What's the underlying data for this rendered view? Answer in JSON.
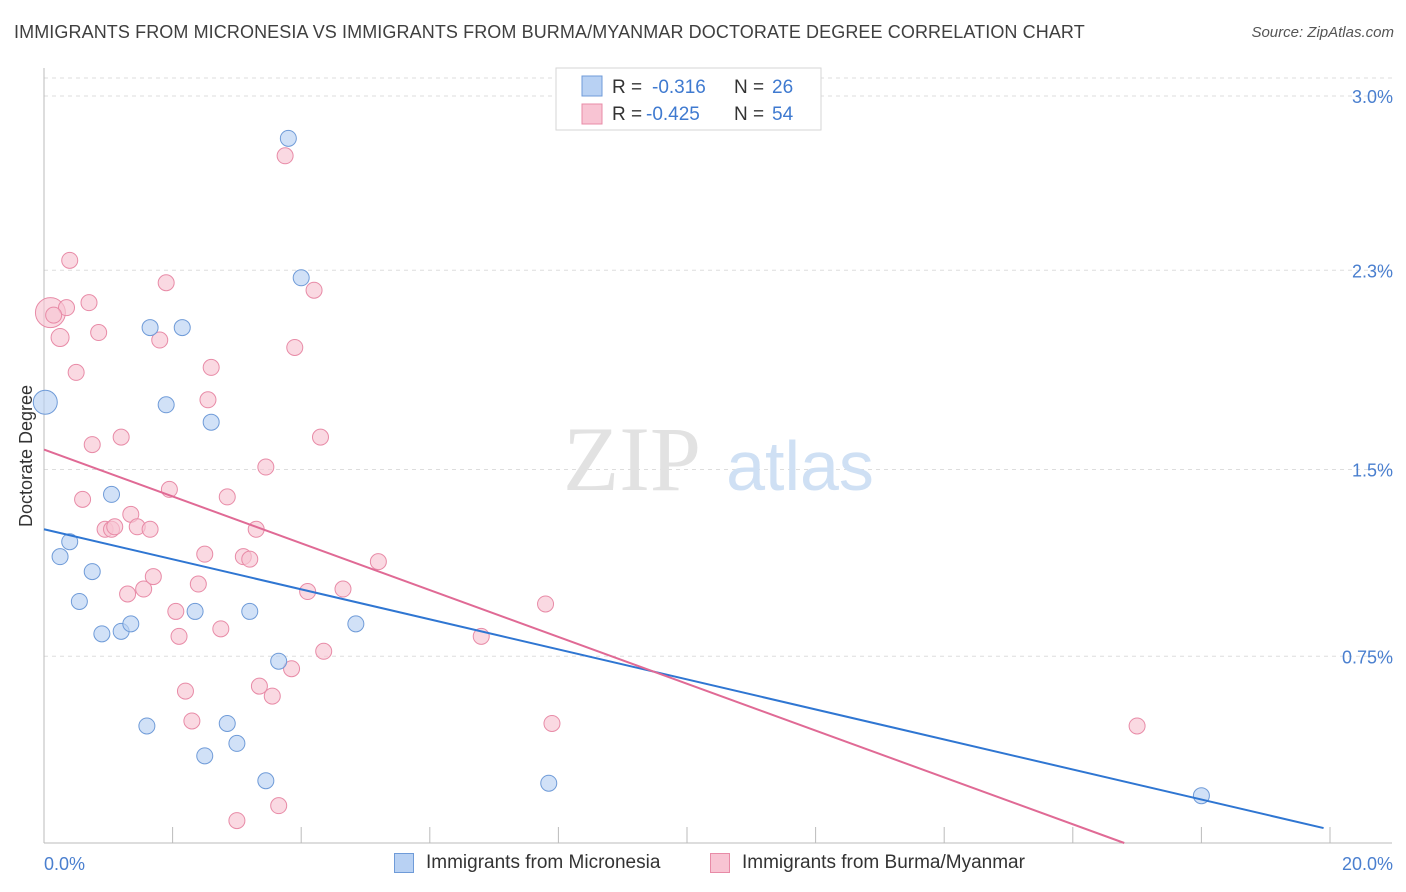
{
  "header": {
    "title": "IMMIGRANTS FROM MICRONESIA VS IMMIGRANTS FROM BURMA/MYANMAR DOCTORATE DEGREE CORRELATION CHART",
    "source": "Source: ZipAtlas.com"
  },
  "watermark": {
    "part1": "ZIP",
    "part2": "atlas"
  },
  "colors": {
    "blue_fill": "#b8d1f3",
    "blue_stroke": "#6f9bd8",
    "blue_line": "#2f76d2",
    "pink_fill": "#f8c4d3",
    "pink_stroke": "#e88ba7",
    "pink_line": "#e06a95",
    "axis_text": "#4a7fcf",
    "grid": "#dddddd"
  },
  "legend": {
    "rows": [
      {
        "r_label": "R =",
        "r_value": "-0.316",
        "n_label": "N =",
        "n_value": "26"
      },
      {
        "r_label": "R =",
        "r_value": "-0.425",
        "n_label": "N =",
        "n_value": "54"
      }
    ]
  },
  "chart_data": {
    "type": "scatter",
    "title": "IMMIGRANTS FROM MICRONESIA VS IMMIGRANTS FROM BURMA/MYANMAR DOCTORATE DEGREE CORRELATION CHART",
    "xlabel": "",
    "ylabel": "Doctorate Degree",
    "xlim": [
      0,
      20
    ],
    "ylim": [
      0,
      3.0
    ],
    "x_tick_labels": [
      "0.0%",
      "20.0%"
    ],
    "y_ticks": [
      0.75,
      1.5,
      2.3,
      3.0
    ],
    "y_tick_labels": [
      "0.75%",
      "1.5%",
      "2.3%",
      "3.0%"
    ],
    "grid": true,
    "legend_position": "top-center",
    "series": [
      {
        "name": "Immigrants from Micronesia",
        "color": "#6f9bd8",
        "r": -0.316,
        "n": 26,
        "trend": {
          "x": [
            0,
            19.9
          ],
          "y": [
            1.26,
            0.06
          ]
        },
        "points": [
          [
            0.02,
            1.77,
            24
          ],
          [
            0.25,
            1.15,
            16
          ],
          [
            0.4,
            1.21,
            16
          ],
          [
            0.55,
            0.97,
            16
          ],
          [
            0.75,
            1.09,
            16
          ],
          [
            0.9,
            0.84,
            16
          ],
          [
            1.05,
            1.4,
            16
          ],
          [
            1.2,
            0.85,
            16
          ],
          [
            1.35,
            0.88,
            16
          ],
          [
            1.6,
            0.47,
            16
          ],
          [
            1.65,
            2.07,
            16
          ],
          [
            1.9,
            1.76,
            16
          ],
          [
            2.15,
            2.07,
            16
          ],
          [
            2.35,
            0.93,
            16
          ],
          [
            2.5,
            0.35,
            16
          ],
          [
            2.6,
            1.69,
            16
          ],
          [
            2.85,
            0.48,
            16
          ],
          [
            3.0,
            0.4,
            16
          ],
          [
            3.2,
            0.93,
            16
          ],
          [
            3.45,
            0.25,
            16
          ],
          [
            3.65,
            0.73,
            16
          ],
          [
            3.8,
            2.83,
            16
          ],
          [
            4.0,
            2.27,
            16
          ],
          [
            4.85,
            0.88,
            16
          ],
          [
            7.85,
            0.24,
            16
          ],
          [
            18.0,
            0.19,
            16
          ]
        ]
      },
      {
        "name": "Immigrants from Burma/Myanmar",
        "color": "#e88ba7",
        "r": -0.425,
        "n": 54,
        "trend": {
          "x": [
            0,
            16.8
          ],
          "y": [
            1.58,
            0.0
          ]
        },
        "points": [
          [
            0.1,
            2.13,
            30
          ],
          [
            0.25,
            2.03,
            18
          ],
          [
            0.35,
            2.15,
            16
          ],
          [
            0.4,
            2.34,
            16
          ],
          [
            0.5,
            1.89,
            16
          ],
          [
            0.6,
            1.38,
            16
          ],
          [
            0.7,
            2.17,
            16
          ],
          [
            0.75,
            1.6,
            16
          ],
          [
            0.85,
            2.05,
            16
          ],
          [
            0.95,
            1.26,
            16
          ],
          [
            1.05,
            1.26,
            16
          ],
          [
            1.1,
            1.27,
            16
          ],
          [
            1.2,
            1.63,
            16
          ],
          [
            1.3,
            1.0,
            16
          ],
          [
            1.35,
            1.32,
            16
          ],
          [
            1.45,
            1.27,
            16
          ],
          [
            1.55,
            1.02,
            16
          ],
          [
            1.65,
            1.26,
            16
          ],
          [
            1.7,
            1.07,
            16
          ],
          [
            1.8,
            2.02,
            16
          ],
          [
            1.9,
            2.25,
            16
          ],
          [
            1.95,
            1.42,
            16
          ],
          [
            2.05,
            0.93,
            16
          ],
          [
            2.1,
            0.83,
            16
          ],
          [
            2.2,
            0.61,
            16
          ],
          [
            2.3,
            0.49,
            16
          ],
          [
            2.4,
            1.04,
            16
          ],
          [
            2.5,
            1.16,
            16
          ],
          [
            2.55,
            1.78,
            16
          ],
          [
            2.6,
            1.91,
            16
          ],
          [
            2.75,
            0.86,
            16
          ],
          [
            2.85,
            1.39,
            16
          ],
          [
            3.0,
            0.09,
            16
          ],
          [
            3.1,
            1.15,
            16
          ],
          [
            3.2,
            1.14,
            16
          ],
          [
            3.3,
            1.26,
            16
          ],
          [
            3.35,
            0.63,
            16
          ],
          [
            3.45,
            1.51,
            16
          ],
          [
            3.55,
            0.59,
            16
          ],
          [
            3.65,
            0.15,
            16
          ],
          [
            3.75,
            2.76,
            16
          ],
          [
            3.85,
            0.7,
            16
          ],
          [
            3.9,
            1.99,
            16
          ],
          [
            4.1,
            1.01,
            16
          ],
          [
            4.2,
            2.22,
            16
          ],
          [
            4.3,
            1.63,
            16
          ],
          [
            4.35,
            0.77,
            16
          ],
          [
            4.65,
            1.02,
            16
          ],
          [
            5.2,
            1.13,
            16
          ],
          [
            6.8,
            0.83,
            16
          ],
          [
            7.8,
            0.96,
            16
          ],
          [
            7.9,
            0.48,
            16
          ],
          [
            17.0,
            0.47,
            16
          ],
          [
            0.15,
            2.12,
            16
          ]
        ]
      }
    ]
  }
}
